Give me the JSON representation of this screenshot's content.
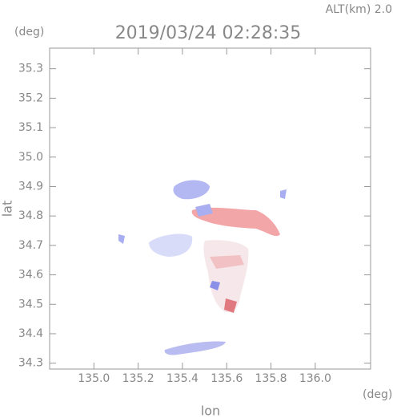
{
  "chart_data": {
    "type": "map",
    "title": "2019/03/24 02:28:35",
    "altitude_label": "ALT(km) 2.0",
    "y_unit": "(deg)",
    "x_unit": "(deg)",
    "xlabel": "lon",
    "ylabel": "lat",
    "xlim": [
      134.8,
      136.25
    ],
    "ylim": [
      34.28,
      35.37
    ],
    "xticks": [
      {
        "value": 135,
        "label": "135.0"
      },
      135.2,
      135.4,
      135.6,
      135.8,
      {
        "value": 136,
        "label": "136.0"
      }
    ],
    "yticks": [
      34.3,
      34.4,
      34.5,
      34.6,
      34.7,
      34.8,
      34.9,
      {
        "value": 35,
        "label": "35.0"
      },
      35.1,
      35.2,
      35.3
    ]
  }
}
